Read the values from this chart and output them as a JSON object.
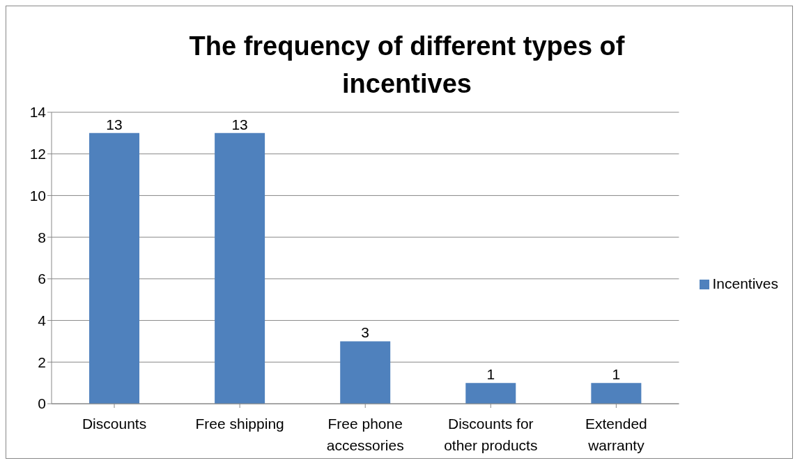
{
  "chart_data": {
    "type": "bar",
    "title": "The frequency of different types of incentives",
    "categories": [
      "Discounts",
      "Free shipping",
      "Free phone accessories",
      "Discounts for other products",
      "Extended warranty"
    ],
    "series": [
      {
        "name": "Incentives",
        "color": "#4f81bd",
        "values": [
          13,
          13,
          3,
          1,
          1
        ]
      }
    ],
    "ylim": [
      0,
      14
    ],
    "yticks": [
      0,
      2,
      4,
      6,
      8,
      10,
      12,
      14
    ],
    "grid": "y",
    "legend": "right",
    "data_labels": true
  }
}
